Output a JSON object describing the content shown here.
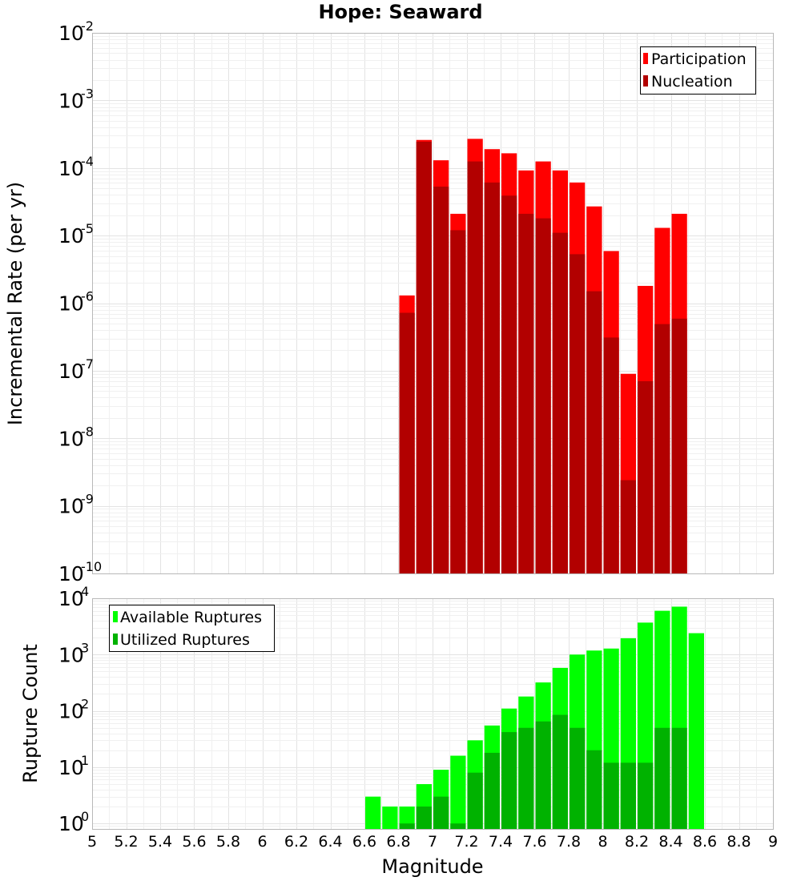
{
  "chart_data": [
    {
      "type": "bar",
      "title": "Hope: Seaward",
      "ylabel": "Incremental Rate (per yr)",
      "xlabel": "",
      "xlim": [
        5,
        9
      ],
      "ylim": [
        1e-10,
        0.01
      ],
      "y_scale": "log",
      "grid": true,
      "legend_position": "top-right",
      "bin_width": 0.1,
      "x": [
        6.85,
        6.95,
        7.05,
        7.15,
        7.25,
        7.35,
        7.45,
        7.55,
        7.65,
        7.75,
        7.85,
        7.95,
        8.05,
        8.15,
        8.25,
        8.35,
        8.45
      ],
      "series": [
        {
          "name": "Participation",
          "color": "#ff0000",
          "values": [
            1.3e-06,
            0.00026,
            0.00013,
            2.1e-05,
            0.00027,
            0.00019,
            0.000165,
            9.2e-05,
            0.000125,
            9.2e-05,
            6.1e-05,
            2.7e-05,
            5.9e-06,
            9e-08,
            1.8e-06,
            1.3e-05,
            2.1e-05
          ]
        },
        {
          "name": "Nucleation",
          "color": "#b20000",
          "values": [
            7.2e-07,
            0.000245,
            5.3e-05,
            1.2e-05,
            0.000125,
            6.1e-05,
            3.9e-05,
            2.1e-05,
            1.8e-05,
            1.1e-05,
            5.3e-06,
            1.5e-06,
            3.1e-07,
            2.4e-09,
            7e-08,
            4.9e-07,
            5.9e-07
          ]
        }
      ],
      "y_ticks": [
        {
          "base": "10",
          "exp": "-2"
        },
        {
          "base": "10",
          "exp": "-3"
        },
        {
          "base": "10",
          "exp": "-4"
        },
        {
          "base": "10",
          "exp": "-5"
        },
        {
          "base": "10",
          "exp": "-6"
        },
        {
          "base": "10",
          "exp": "-7"
        },
        {
          "base": "10",
          "exp": "-8"
        },
        {
          "base": "10",
          "exp": "-9"
        },
        {
          "base": "10",
          "exp": "-10"
        }
      ]
    },
    {
      "type": "bar",
      "title": "",
      "ylabel": "Rupture Count",
      "xlabel": "Magnitude",
      "xlim": [
        5,
        9
      ],
      "ylim": [
        0.8,
        10000
      ],
      "y_scale": "log",
      "grid": true,
      "legend_position": "top-left",
      "bin_width": 0.1,
      "x": [
        6.65,
        6.75,
        6.85,
        6.95,
        7.05,
        7.15,
        7.25,
        7.35,
        7.45,
        7.55,
        7.65,
        7.75,
        7.85,
        7.95,
        8.05,
        8.15,
        8.25,
        8.35,
        8.45,
        8.55
      ],
      "series": [
        {
          "name": "Available Ruptures",
          "color": "#00ff00",
          "values": [
            3,
            2,
            2,
            5,
            9,
            16,
            30,
            55,
            110,
            180,
            320,
            580,
            1000,
            1180,
            1280,
            1950,
            3700,
            6000,
            7100,
            2400
          ]
        },
        {
          "name": "Utilized Ruptures",
          "color": "#00b200",
          "values": [
            0,
            0,
            1,
            2,
            3,
            1,
            8,
            18,
            42,
            50,
            65,
            85,
            50,
            20,
            12,
            12,
            12,
            50,
            50,
            0
          ]
        }
      ],
      "y_ticks": [
        {
          "base": "10",
          "exp": "4"
        },
        {
          "base": "10",
          "exp": "3"
        },
        {
          "base": "10",
          "exp": "2"
        },
        {
          "base": "10",
          "exp": "1"
        },
        {
          "base": "10",
          "exp": "0"
        }
      ],
      "x_ticks": [
        "5",
        "5.2",
        "5.4",
        "5.6",
        "5.8",
        "6",
        "6.2",
        "6.4",
        "6.6",
        "6.8",
        "7",
        "7.2",
        "7.4",
        "7.6",
        "7.8",
        "8",
        "8.2",
        "8.4",
        "8.6",
        "8.8",
        "9"
      ]
    }
  ]
}
